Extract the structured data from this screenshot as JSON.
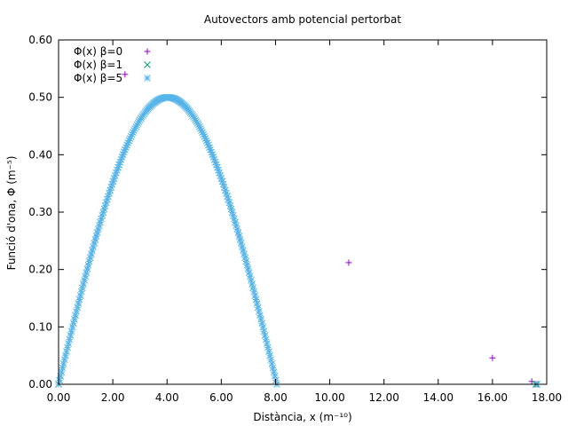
{
  "chart_data": {
    "type": "scatter",
    "title": "Autovectors amb potencial pertorbat",
    "xlabel": "Distància, x (m⁻¹⁰)",
    "ylabel": "Funció d'ona, Φ (m⁻⁵)",
    "xlim": [
      0,
      18
    ],
    "ylim": [
      0,
      0.6
    ],
    "xticks": [
      "0.00",
      "2.00",
      "4.00",
      "6.00",
      "8.00",
      "10.00",
      "12.00",
      "14.00",
      "16.00",
      "18.00"
    ],
    "yticks": [
      "0.00",
      "0.10",
      "0.20",
      "0.30",
      "0.40",
      "0.50",
      "0.60"
    ],
    "grid": false,
    "legend_position": "top-left",
    "series": [
      {
        "name": "Φ(x) β=0",
        "color": "#9400d3",
        "marker": "plus",
        "points": [
          [
            0.0,
            0.0
          ],
          [
            2.45,
            0.54
          ],
          [
            10.7,
            0.212
          ],
          [
            16.0,
            0.046
          ],
          [
            17.45,
            0.005
          ],
          [
            17.6,
            0.0
          ]
        ]
      },
      {
        "name": "Φ(x) β=1",
        "color": "#009e73",
        "marker": "cross",
        "points": [
          [
            0.0,
            0.0
          ],
          [
            17.6,
            0.0
          ]
        ]
      },
      {
        "name": "Φ(x) β=5",
        "color": "#56b4e9",
        "marker": "star",
        "curve": {
          "shape": "sine-arch",
          "x_start": 0.0,
          "x_end": 8.05,
          "peak_x": 4.02,
          "peak_y": 0.5
        },
        "extra_points": [
          [
            17.65,
            0.0
          ]
        ]
      }
    ]
  }
}
